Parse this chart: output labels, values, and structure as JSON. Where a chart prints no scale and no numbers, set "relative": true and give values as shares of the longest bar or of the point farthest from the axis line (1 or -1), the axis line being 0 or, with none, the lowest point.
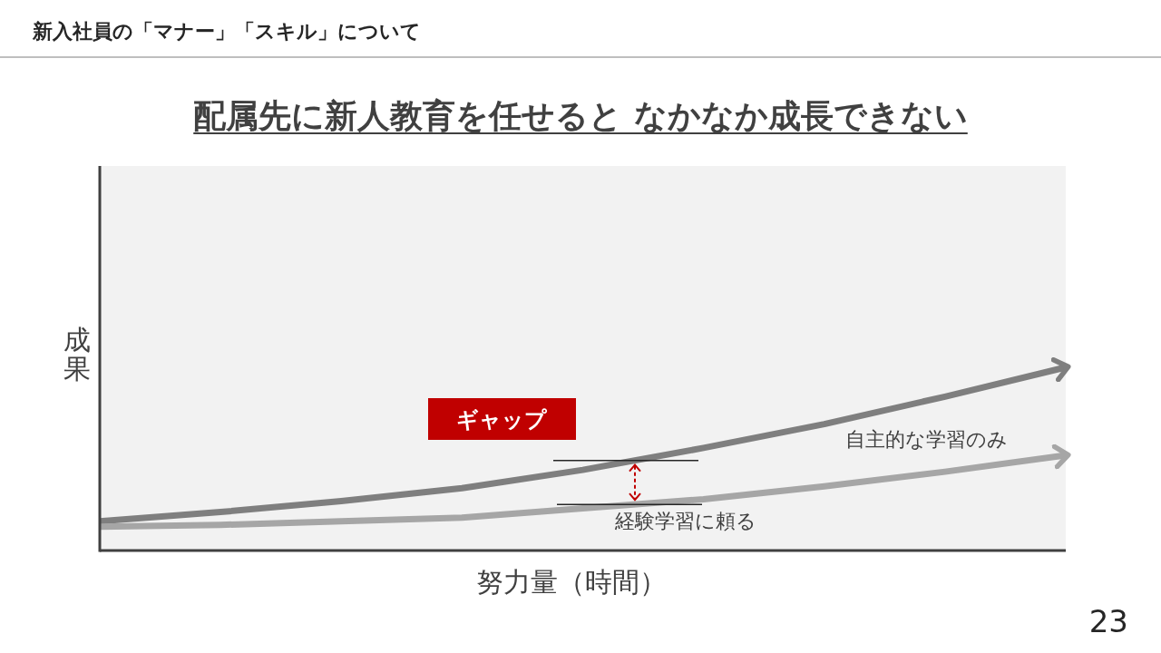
{
  "chart_data": {
    "type": "line",
    "title": "新入社員の「マナー」「スキル」について",
    "subtitle": "配属先に新人教育を任せると なかなか成長できない",
    "xlabel": "努力量（時間）",
    "ylabel": "成果",
    "relative": true,
    "categories": [
      null,
      null,
      null,
      null,
      null,
      null,
      null,
      null,
      null
    ],
    "series": [
      {
        "name": "自主的な学習のみ",
        "color": "#7f7f7f",
        "values": [
          0.16,
          0.21,
          0.27,
          0.34,
          0.44,
          0.56,
          0.69,
          0.84,
          1
        ]
      },
      {
        "name": "経験学習に頼る",
        "color": "#a6a6a6",
        "values": [
          0.13,
          0.14,
          0.16,
          0.18,
          0.23,
          0.28,
          0.35,
          0.43,
          0.52
        ]
      }
    ],
    "annotations": [
      "ギャップ",
      "23"
    ]
  }
}
